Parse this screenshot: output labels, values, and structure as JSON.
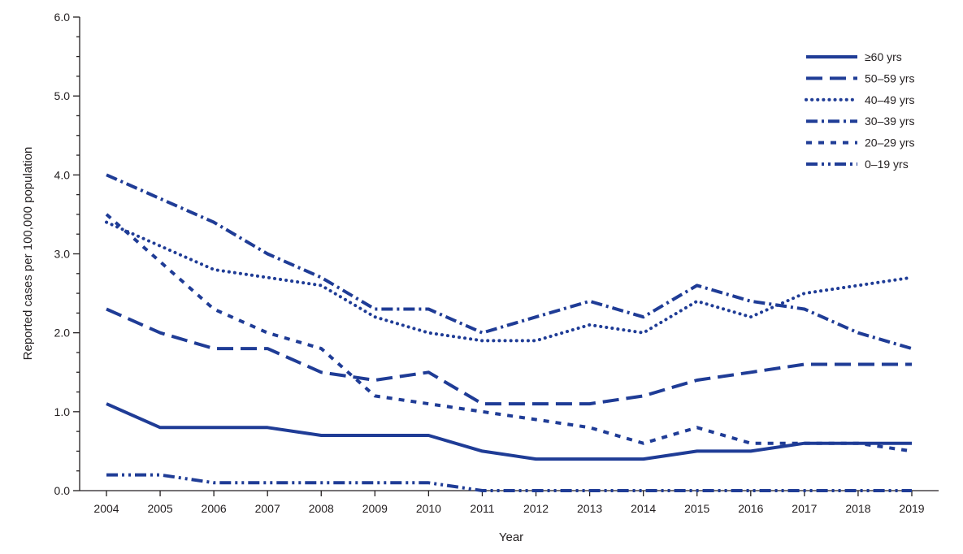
{
  "chart_data": {
    "type": "line",
    "xlabel": "Year",
    "ylabel": "Reported cases per 100,000 population",
    "ylim": [
      0,
      6
    ],
    "yticks": [
      "0.0",
      "1.0",
      "2.0",
      "3.0",
      "4.0",
      "5.0",
      "6.0"
    ],
    "x": [
      "2004",
      "2005",
      "2006",
      "2007",
      "2008",
      "2009",
      "2010",
      "2011",
      "2012",
      "2013",
      "2014",
      "2015",
      "2016",
      "2017",
      "2018",
      "2019"
    ],
    "grid": false,
    "legend_position": "top-right",
    "line_color": "#1f3c96",
    "series": [
      {
        "name": "≥60 yrs",
        "dash": "solid",
        "values": [
          1.1,
          0.8,
          0.8,
          0.8,
          0.7,
          0.7,
          0.7,
          0.5,
          0.4,
          0.4,
          0.4,
          0.5,
          0.5,
          0.6,
          0.6,
          0.6
        ]
      },
      {
        "name": "50–59 yrs",
        "dash": "long-dash",
        "values": [
          2.3,
          2.0,
          1.8,
          1.8,
          1.5,
          1.4,
          1.5,
          1.1,
          1.1,
          1.1,
          1.2,
          1.4,
          1.5,
          1.6,
          1.6,
          1.6
        ]
      },
      {
        "name": "40–49 yrs",
        "dash": "dotted",
        "values": [
          3.4,
          3.1,
          2.8,
          2.7,
          2.6,
          2.2,
          2.0,
          1.9,
          1.9,
          2.1,
          2.0,
          2.4,
          2.2,
          2.5,
          2.6,
          2.7
        ]
      },
      {
        "name": "30–39 yrs",
        "dash": "dash-dot",
        "values": [
          4.0,
          3.7,
          3.4,
          3.0,
          2.7,
          2.3,
          2.3,
          2.0,
          2.2,
          2.4,
          2.2,
          2.6,
          2.4,
          2.3,
          2.0,
          1.8
        ]
      },
      {
        "name": "20–29 yrs",
        "dash": "short-dash",
        "values": [
          3.5,
          2.9,
          2.3,
          2.0,
          1.8,
          1.2,
          1.1,
          1.0,
          0.9,
          0.8,
          0.6,
          0.8,
          0.6,
          0.6,
          0.6,
          0.5
        ]
      },
      {
        "name": "0–19 yrs",
        "dash": "dash-dot-dot",
        "values": [
          0.2,
          0.2,
          0.1,
          0.1,
          0.1,
          0.1,
          0.1,
          0.0,
          0.0,
          0.0,
          0.0,
          0.0,
          0.0,
          0.0,
          0.0,
          0.0
        ]
      }
    ]
  }
}
